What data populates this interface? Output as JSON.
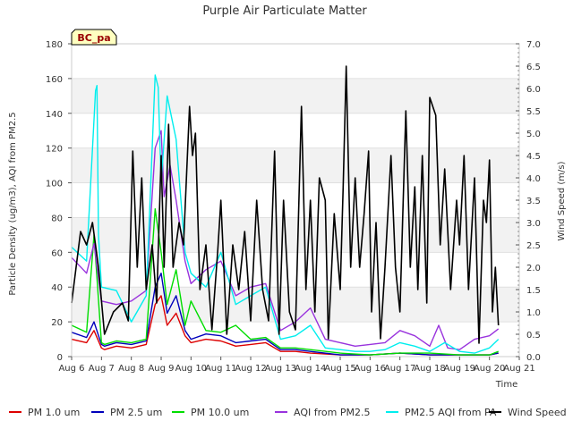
{
  "chart_data": {
    "type": "line",
    "title": "Purple Air Particulate Matter",
    "xlabel": "Time",
    "ylabel": "Particle Density (ug/m3), AQI from PM2.5",
    "y2label": "Wind Speed (m/s)",
    "site_label": "BC_pa",
    "x_unit": "days since Aug 6",
    "xlim": [
      0,
      15
    ],
    "ylim": [
      0,
      180
    ],
    "y2lim": [
      0,
      7.0
    ],
    "x_ticks": [
      {
        "x": 0,
        "label": "Aug 6"
      },
      {
        "x": 1,
        "label": "Aug 7"
      },
      {
        "x": 2,
        "label": "Aug 8"
      },
      {
        "x": 3,
        "label": "Aug 9"
      },
      {
        "x": 4,
        "label": "Aug 10"
      },
      {
        "x": 5,
        "label": "Aug 11"
      },
      {
        "x": 6,
        "label": "Aug 12"
      },
      {
        "x": 7,
        "label": "Aug 13"
      },
      {
        "x": 8,
        "label": "Aug 14"
      },
      {
        "x": 9,
        "label": "Aug 15"
      },
      {
        "x": 10,
        "label": "Aug 16"
      },
      {
        "x": 11,
        "label": "Aug 17"
      },
      {
        "x": 12,
        "label": "Aug 18"
      },
      {
        "x": 13,
        "label": "Aug 19"
      },
      {
        "x": 14,
        "label": "Aug 20"
      },
      {
        "x": 15,
        "label": "Aug 21"
      }
    ],
    "y_ticks": [
      {
        "v": 0,
        "label": "0"
      },
      {
        "v": 20,
        "label": "20"
      },
      {
        "v": 40,
        "label": "40"
      },
      {
        "v": 60,
        "label": "60"
      },
      {
        "v": 80,
        "label": "80"
      },
      {
        "v": 100,
        "label": "100"
      },
      {
        "v": 120,
        "label": "120"
      },
      {
        "v": 140,
        "label": "140"
      },
      {
        "v": 160,
        "label": "160"
      },
      {
        "v": 180,
        "label": "180"
      }
    ],
    "y2_ticks": [
      {
        "v": 0.0,
        "label": "0.0"
      },
      {
        "v": 0.5,
        "label": "0.5"
      },
      {
        "v": 1.0,
        "label": "1.0"
      },
      {
        "v": 1.5,
        "label": "1.5"
      },
      {
        "v": 2.0,
        "label": "2.0"
      },
      {
        "v": 2.5,
        "label": "2.5"
      },
      {
        "v": 3.0,
        "label": "3.0"
      },
      {
        "v": 3.5,
        "label": "3.5"
      },
      {
        "v": 4.0,
        "label": "4.0"
      },
      {
        "v": 4.5,
        "label": "4.5"
      },
      {
        "v": 5.0,
        "label": "5.0"
      },
      {
        "v": 5.5,
        "label": "5.5"
      },
      {
        "v": 6.0,
        "label": "6.0"
      },
      {
        "v": 6.5,
        "label": "6.5"
      },
      {
        "v": 7.0,
        "label": "7.0"
      }
    ],
    "series": [
      {
        "name": "PM 1.0 um",
        "color": "#dd0000",
        "axis": "left",
        "x": [
          0,
          0.5,
          0.75,
          1.0,
          1.1,
          1.5,
          2.0,
          2.5,
          2.8,
          3.0,
          3.2,
          3.5,
          3.8,
          4.0,
          4.5,
          5.0,
          5.5,
          6.0,
          6.5,
          7.0,
          7.5,
          8.0,
          9.0,
          10.0,
          11.0,
          12.0,
          13.0,
          14.0,
          14.3
        ],
        "y": [
          10,
          8,
          15,
          5,
          4,
          6,
          5,
          7,
          30,
          35,
          18,
          25,
          12,
          8,
          10,
          9,
          6,
          7,
          8,
          3,
          3,
          2,
          1,
          1,
          2,
          1,
          1,
          1,
          2
        ]
      },
      {
        "name": "PM 2.5 um",
        "color": "#0000bb",
        "axis": "left",
        "x": [
          0,
          0.5,
          0.75,
          1.0,
          1.1,
          1.5,
          2.0,
          2.5,
          2.8,
          3.0,
          3.2,
          3.5,
          3.8,
          4.0,
          4.5,
          5.0,
          5.5,
          6.0,
          6.5,
          7.0,
          7.5,
          8.0,
          9.0,
          10.0,
          11.0,
          12.0,
          13.0,
          14.0,
          14.3
        ],
        "y": [
          14,
          11,
          20,
          7,
          6,
          8,
          7,
          9,
          40,
          48,
          25,
          35,
          15,
          10,
          13,
          12,
          8,
          9,
          10,
          4,
          4,
          3,
          1,
          1,
          2,
          1,
          1,
          1,
          2
        ]
      },
      {
        "name": "PM 10.0 um",
        "color": "#00dd00",
        "axis": "left",
        "x": [
          0,
          0.5,
          0.75,
          1.0,
          1.1,
          1.5,
          2.0,
          2.5,
          2.8,
          3.0,
          3.2,
          3.5,
          3.8,
          4.0,
          4.5,
          5.0,
          5.5,
          6.0,
          6.5,
          7.0,
          7.5,
          8.0,
          9.0,
          10.0,
          11.0,
          12.0,
          13.0,
          14.0,
          14.3
        ],
        "y": [
          18,
          14,
          70,
          8,
          7,
          9,
          8,
          10,
          85,
          60,
          30,
          50,
          18,
          32,
          15,
          14,
          18,
          10,
          11,
          5,
          5,
          4,
          2,
          1,
          2,
          2,
          1,
          1,
          3
        ]
      },
      {
        "name": "AQI from PM2.5",
        "color": "#9933dd",
        "axis": "left",
        "x": [
          0,
          0.5,
          0.75,
          1.0,
          1.5,
          2.0,
          2.5,
          2.8,
          3.0,
          3.1,
          3.3,
          3.5,
          3.8,
          4.0,
          4.5,
          5.0,
          5.5,
          6.0,
          6.5,
          7.0,
          7.5,
          8.0,
          8.5,
          9.0,
          9.5,
          10.0,
          10.5,
          11.0,
          11.5,
          12.0,
          12.3,
          12.6,
          13.0,
          13.5,
          14.0,
          14.3
        ],
        "y": [
          57,
          48,
          65,
          32,
          30,
          32,
          38,
          120,
          130,
          92,
          110,
          90,
          55,
          42,
          50,
          55,
          35,
          40,
          42,
          15,
          20,
          28,
          10,
          8,
          6,
          7,
          8,
          15,
          12,
          6,
          18,
          5,
          4,
          10,
          12,
          16
        ]
      },
      {
        "name": "PM2.5 AQI from PA",
        "color": "#00eeee",
        "axis": "left",
        "x": [
          0,
          0.5,
          0.8,
          0.85,
          0.9,
          1.0,
          1.5,
          2.0,
          2.5,
          2.8,
          2.9,
          3.0,
          3.2,
          3.5,
          3.8,
          4.0,
          4.5,
          5.0,
          5.5,
          6.0,
          6.5,
          7.0,
          7.5,
          8.0,
          8.5,
          9.0,
          9.5,
          10.0,
          10.5,
          11.0,
          11.5,
          12.0,
          12.5,
          13.0,
          13.5,
          14.0,
          14.3
        ],
        "y": [
          63,
          55,
          153,
          156,
          70,
          40,
          38,
          20,
          35,
          162,
          155,
          100,
          150,
          125,
          60,
          48,
          40,
          60,
          30,
          35,
          40,
          10,
          12,
          18,
          5,
          4,
          3,
          3,
          4,
          8,
          6,
          3,
          8,
          3,
          2,
          5,
          10
        ]
      },
      {
        "name": "Wind Speed",
        "color": "#000000",
        "axis": "right",
        "x": [
          0,
          0.3,
          0.5,
          0.7,
          0.9,
          1.1,
          1.4,
          1.7,
          1.9,
          2.05,
          2.2,
          2.35,
          2.5,
          2.7,
          2.85,
          3.0,
          3.1,
          3.25,
          3.4,
          3.6,
          3.75,
          3.95,
          4.05,
          4.15,
          4.3,
          4.5,
          4.7,
          4.9,
          5.0,
          5.2,
          5.4,
          5.6,
          5.8,
          6.0,
          6.2,
          6.4,
          6.6,
          6.8,
          6.95,
          7.1,
          7.3,
          7.5,
          7.7,
          7.85,
          8.0,
          8.15,
          8.3,
          8.5,
          8.6,
          8.8,
          9.0,
          9.1,
          9.2,
          9.35,
          9.5,
          9.65,
          9.8,
          9.95,
          10.05,
          10.2,
          10.35,
          10.5,
          10.7,
          10.85,
          11.0,
          11.2,
          11.35,
          11.5,
          11.6,
          11.75,
          11.9,
          12.0,
          12.2,
          12.35,
          12.5,
          12.7,
          12.9,
          13.0,
          13.15,
          13.3,
          13.5,
          13.65,
          13.8,
          13.9,
          14.0,
          14.1,
          14.2,
          14.3
        ],
        "y": [
          1.2,
          2.8,
          2.5,
          3.0,
          2.0,
          0.5,
          1.0,
          1.2,
          0.8,
          4.6,
          2.0,
          4.0,
          1.5,
          2.5,
          1.2,
          4.5,
          2.0,
          5.2,
          2.0,
          3.0,
          2.5,
          5.6,
          4.5,
          5.0,
          1.5,
          2.5,
          0.6,
          2.4,
          3.5,
          0.5,
          2.5,
          1.5,
          2.8,
          0.8,
          3.5,
          1.5,
          0.8,
          4.6,
          0.5,
          3.5,
          1.0,
          0.6,
          5.6,
          1.5,
          3.5,
          1.0,
          4.0,
          3.5,
          0.4,
          3.2,
          1.5,
          3.8,
          6.5,
          2.0,
          4.0,
          2.0,
          3.2,
          4.6,
          1.0,
          3.0,
          0.4,
          2.0,
          4.5,
          2.0,
          1.0,
          5.5,
          2.0,
          3.8,
          1.5,
          4.5,
          1.2,
          5.8,
          5.4,
          2.5,
          4.2,
          1.5,
          3.5,
          2.5,
          4.5,
          1.5,
          4.0,
          0.3,
          3.5,
          3.0,
          4.4,
          1.0,
          2.0,
          0.7
        ]
      }
    ]
  }
}
